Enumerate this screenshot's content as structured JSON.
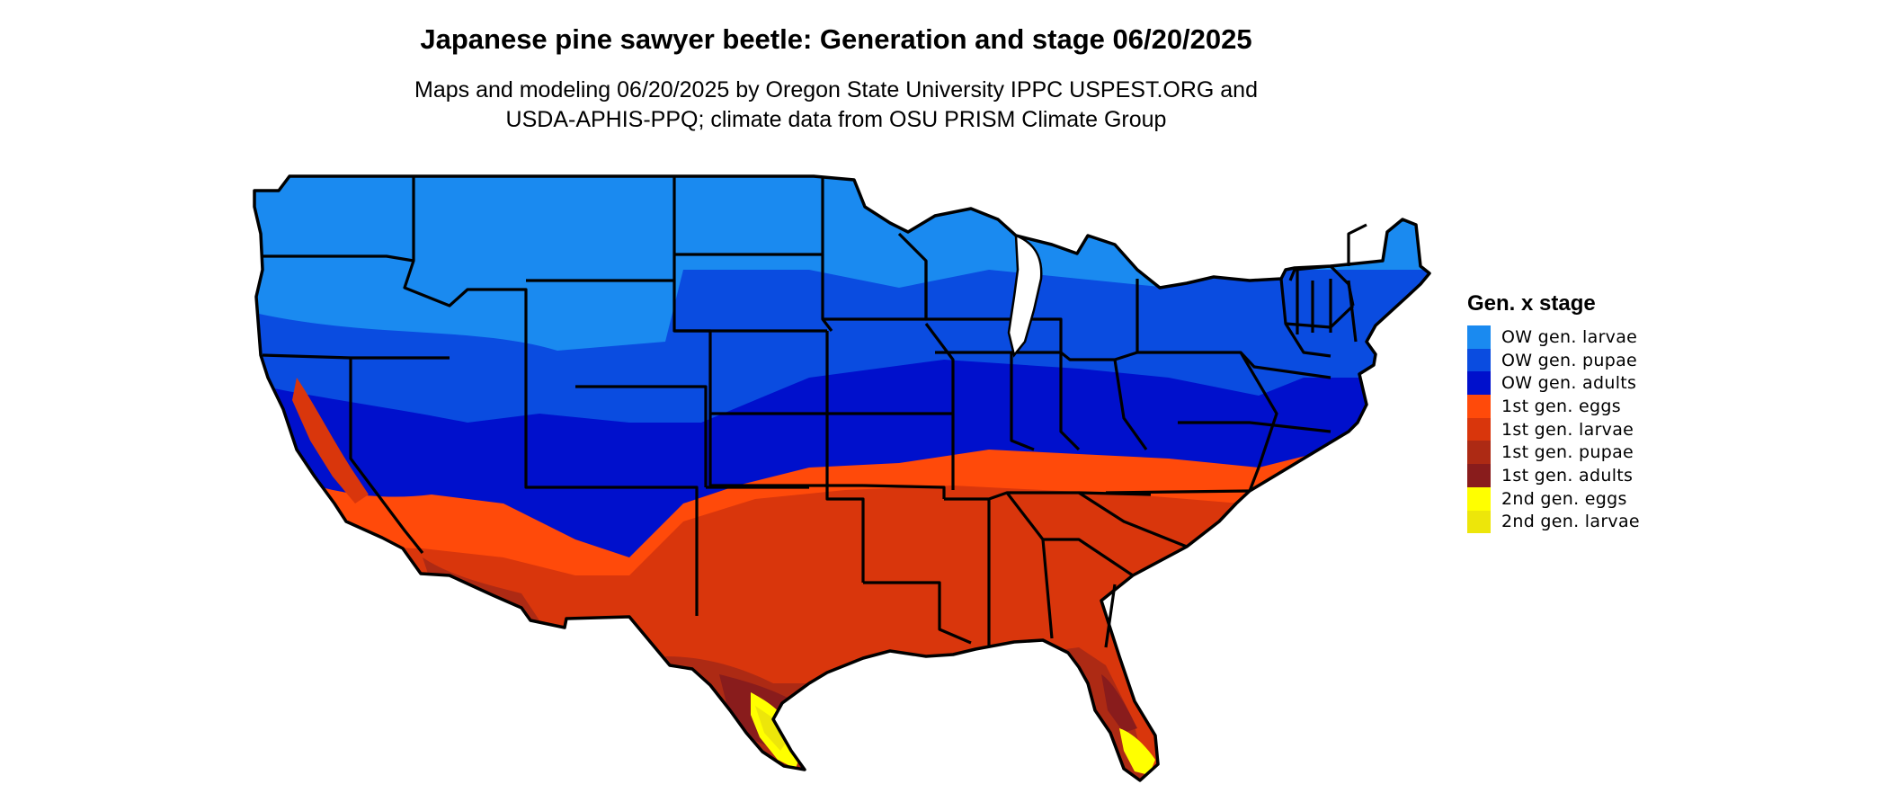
{
  "title": "Japanese pine sawyer beetle: Generation and stage 06/20/2025",
  "subtitle_lines": [
    "Maps and modeling 06/20/2025 by Oregon State University IPPC USPEST.ORG and",
    "USDA-APHIS-PPQ; climate data from OSU PRISM Climate Group"
  ],
  "legend": {
    "title": "Gen. x stage",
    "items": [
      {
        "label": "OW gen. larvae",
        "color": "#1a8af0"
      },
      {
        "label": "OW gen. pupae",
        "color": "#0a4ce0"
      },
      {
        "label": "OW gen. adults",
        "color": "#0010cc"
      },
      {
        "label": "1st gen. eggs",
        "color": "#ff4a0a"
      },
      {
        "label": "1st gen. larvae",
        "color": "#d9360c"
      },
      {
        "label": "1st gen. pupae",
        "color": "#ad2a14"
      },
      {
        "label": "1st gen. adults",
        "color": "#891c1c"
      },
      {
        "label": "2nd gen. eggs",
        "color": "#ffff00"
      },
      {
        "label": "2nd gen. larvae",
        "color": "#ede60a"
      }
    ]
  }
}
